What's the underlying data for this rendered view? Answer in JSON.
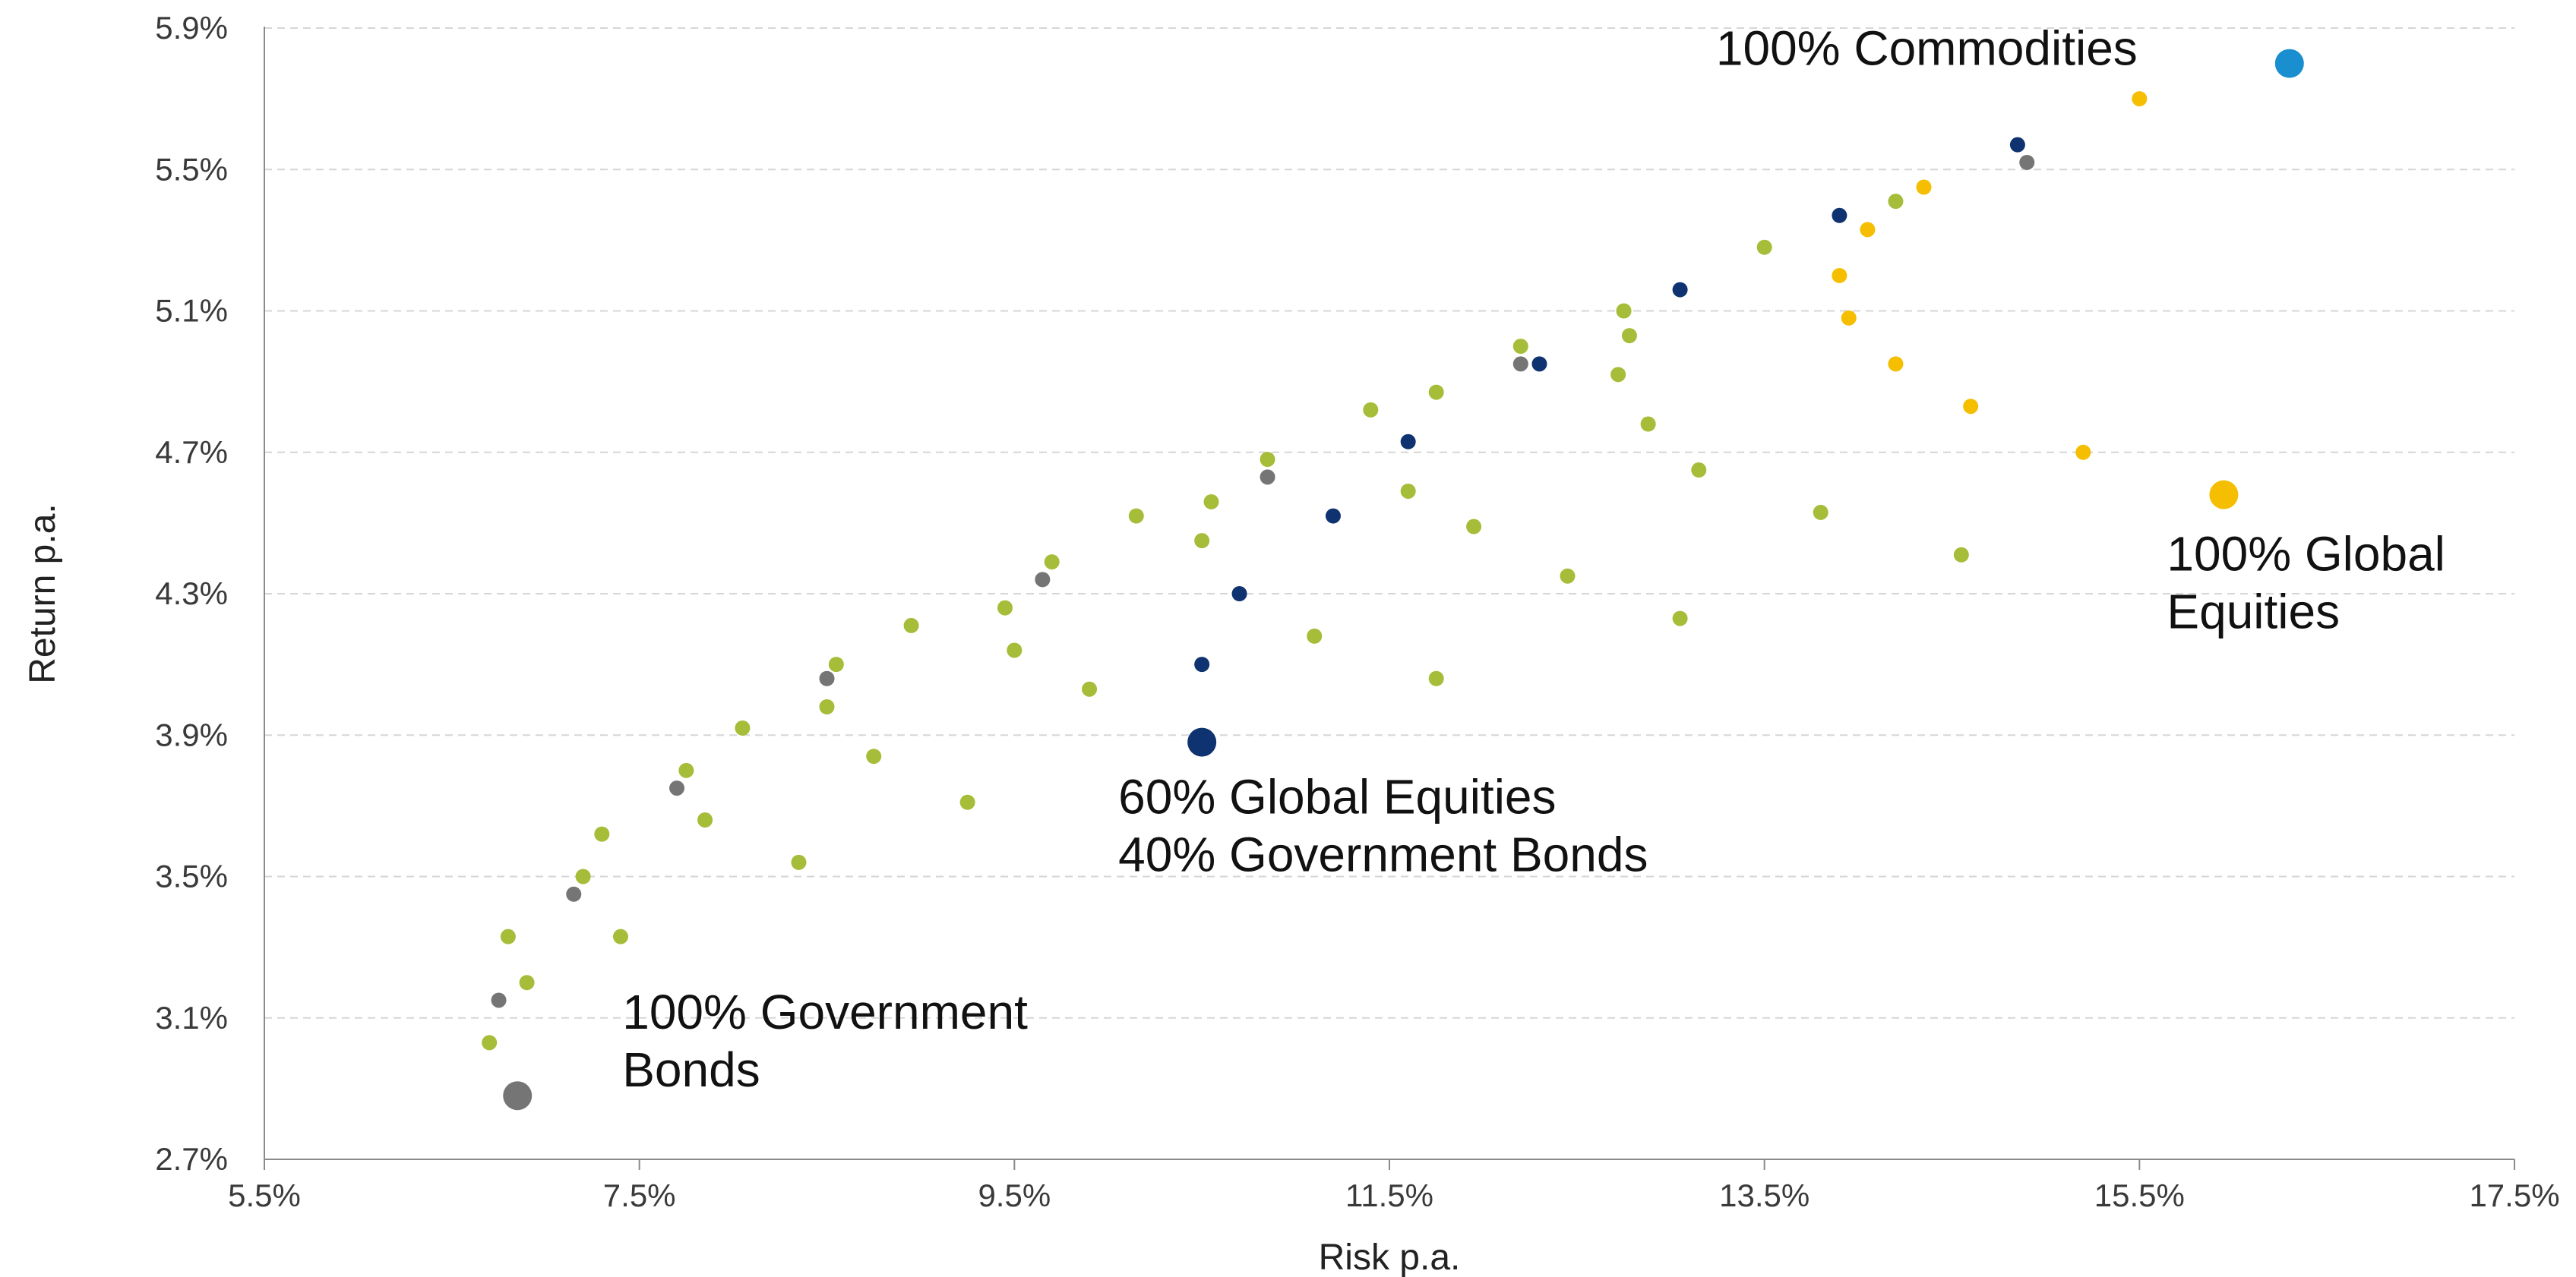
{
  "chart_data": {
    "type": "scatter",
    "xlabel": "Risk p.a.",
    "ylabel": "Return p.a.",
    "xlim": [
      5.5,
      17.5
    ],
    "ylim": [
      2.7,
      5.9
    ],
    "x_ticks": [
      "5.5%",
      "7.5%",
      "9.5%",
      "11.5%",
      "13.5%",
      "15.5%",
      "17.5%"
    ],
    "y_ticks": [
      "2.7%",
      "3.1%",
      "3.5%",
      "3.9%",
      "4.3%",
      "4.7%",
      "5.1%",
      "5.5%",
      "5.9%"
    ],
    "grid": "horizontal dashed",
    "series": [
      {
        "color": "#a5bd38",
        "points": [
          [
            6.7,
            3.03
          ],
          [
            6.9,
            3.2
          ],
          [
            6.8,
            3.33
          ],
          [
            7.4,
            3.33
          ],
          [
            7.2,
            3.5
          ],
          [
            7.3,
            3.62
          ],
          [
            7.75,
            3.8
          ],
          [
            7.85,
            3.66
          ],
          [
            8.05,
            3.92
          ],
          [
            8.35,
            3.54
          ],
          [
            8.5,
            3.98
          ],
          [
            8.55,
            4.1
          ],
          [
            8.75,
            3.84
          ],
          [
            8.95,
            4.21
          ],
          [
            9.25,
            3.71
          ],
          [
            9.45,
            4.26
          ],
          [
            9.5,
            4.14
          ],
          [
            9.7,
            4.39
          ],
          [
            9.9,
            4.03
          ],
          [
            10.15,
            4.52
          ],
          [
            10.5,
            4.45
          ],
          [
            10.55,
            4.56
          ],
          [
            10.85,
            4.68
          ],
          [
            11.1,
            4.18
          ],
          [
            11.4,
            4.82
          ],
          [
            11.6,
            4.59
          ],
          [
            11.75,
            4.87
          ],
          [
            11.75,
            4.06
          ],
          [
            11.95,
            4.49
          ],
          [
            12.2,
            5.0
          ],
          [
            12.45,
            4.35
          ],
          [
            12.72,
            4.92
          ],
          [
            12.75,
            5.1
          ],
          [
            12.78,
            5.03
          ],
          [
            12.88,
            4.78
          ],
          [
            13.15,
            4.65
          ],
          [
            13.05,
            4.23
          ],
          [
            13.5,
            5.28
          ],
          [
            13.8,
            4.53
          ],
          [
            14.2,
            5.41
          ],
          [
            14.55,
            4.41
          ]
        ]
      },
      {
        "color": "#757575",
        "points": [
          [
            6.75,
            3.15
          ],
          [
            7.15,
            3.45
          ],
          [
            7.7,
            3.75
          ],
          [
            8.5,
            4.06
          ],
          [
            9.65,
            4.34
          ],
          [
            10.85,
            4.63
          ],
          [
            12.2,
            4.95
          ],
          [
            14.9,
            5.52
          ]
        ]
      },
      {
        "color": "#0f3370",
        "points": [
          [
            10.5,
            4.1
          ],
          [
            10.7,
            4.3
          ],
          [
            11.2,
            4.52
          ],
          [
            11.6,
            4.73
          ],
          [
            12.3,
            4.95
          ],
          [
            13.05,
            5.16
          ],
          [
            13.9,
            5.37
          ],
          [
            14.85,
            5.57
          ]
        ]
      },
      {
        "color": "#f5be00",
        "points": [
          [
            13.9,
            5.2
          ],
          [
            13.95,
            5.08
          ],
          [
            14.05,
            5.33
          ],
          [
            14.2,
            4.95
          ],
          [
            14.35,
            5.45
          ],
          [
            14.6,
            4.83
          ],
          [
            15.2,
            4.7
          ],
          [
            15.5,
            5.7
          ]
        ]
      }
    ],
    "highlights": [
      {
        "label": [
          "100% Commodities"
        ],
        "x": 16.3,
        "y": 5.8,
        "color": "#1a8fd0"
      },
      {
        "label": [
          "100% Global",
          "Equities"
        ],
        "x": 15.95,
        "y": 4.58,
        "color": "#f5be00"
      },
      {
        "label": [
          "60% Global Equities",
          "40% Government Bonds"
        ],
        "x": 10.5,
        "y": 3.88,
        "color": "#0f3370"
      },
      {
        "label": [
          "100% Government",
          "Bonds"
        ],
        "x": 6.85,
        "y": 2.88,
        "color": "#757575"
      }
    ]
  }
}
